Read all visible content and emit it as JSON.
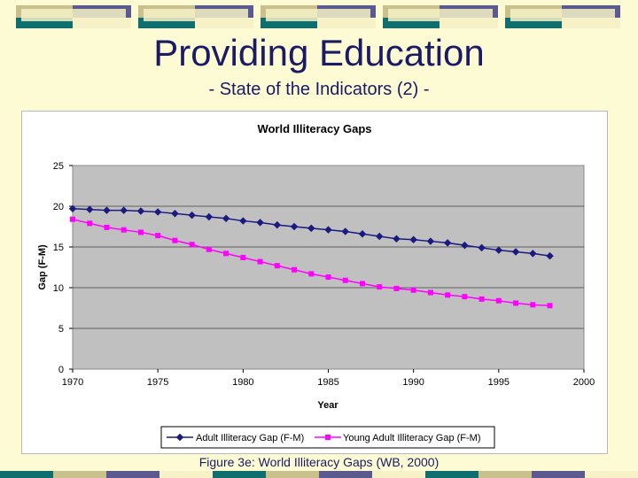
{
  "slide": {
    "title": "Providing Education",
    "subtitle": "- State of the Indicators (2) -",
    "caption": "Figure 3e: World Illiteracy Gaps (WB, 2000)"
  },
  "theme": {
    "background": "#fdfbd3",
    "navy": "#5a5a8e",
    "olive": "#c9c08e",
    "teal": "#0f6e6e",
    "cream": "#f6f1c7",
    "title_color": "#1a1a66"
  },
  "chart_data": {
    "type": "line",
    "title": "World Illiteracy Gaps",
    "xlabel": "Year",
    "ylabel": "Gap (F-M)",
    "xlim": [
      1970,
      2000
    ],
    "ylim": [
      0,
      25
    ],
    "x_ticks": [
      "1970",
      "1975",
      "1980",
      "1985",
      "1990",
      "1995",
      "2000"
    ],
    "y_ticks": [
      "0",
      "5",
      "10",
      "15",
      "20",
      "25"
    ],
    "grid": true,
    "legend_position": "bottom",
    "x": [
      1970,
      1971,
      1972,
      1973,
      1974,
      1975,
      1976,
      1977,
      1978,
      1979,
      1980,
      1981,
      1982,
      1983,
      1984,
      1985,
      1986,
      1987,
      1988,
      1989,
      1990,
      1991,
      1992,
      1993,
      1994,
      1995,
      1996,
      1997,
      1998
    ],
    "series": [
      {
        "name": "Adult Illiteracy Gap (F-M)",
        "color": "#1a1a80",
        "marker": "diamond",
        "values": [
          19.7,
          19.6,
          19.5,
          19.5,
          19.4,
          19.3,
          19.1,
          18.9,
          18.7,
          18.5,
          18.2,
          18.0,
          17.7,
          17.5,
          17.3,
          17.1,
          16.9,
          16.6,
          16.3,
          16.0,
          15.9,
          15.7,
          15.5,
          15.2,
          14.9,
          14.6,
          14.4,
          14.2,
          13.9
        ]
      },
      {
        "name": "Young Adult Illiteracy Gap (F-M)",
        "color": "#ff00ff",
        "marker": "square",
        "values": [
          18.4,
          17.9,
          17.4,
          17.1,
          16.8,
          16.4,
          15.8,
          15.3,
          14.7,
          14.2,
          13.7,
          13.2,
          12.7,
          12.2,
          11.7,
          11.3,
          10.9,
          10.5,
          10.1,
          9.9,
          9.7,
          9.4,
          9.1,
          8.9,
          8.6,
          8.4,
          8.1,
          7.9,
          7.8
        ]
      }
    ]
  }
}
